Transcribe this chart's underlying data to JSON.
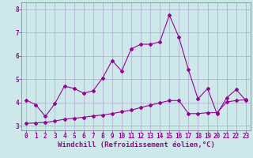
{
  "title": "",
  "xlabel": "Windchill (Refroidissement éolien,°C)",
  "ylabel": "",
  "bg_color": "#cce8e8",
  "grid_color": "#aaaacc",
  "line_color": "#990099",
  "xlim": [
    -0.5,
    23.5
  ],
  "ylim": [
    2.8,
    8.3
  ],
  "xticks": [
    0,
    1,
    2,
    3,
    4,
    5,
    6,
    7,
    8,
    9,
    10,
    11,
    12,
    13,
    14,
    15,
    16,
    17,
    18,
    19,
    20,
    21,
    22,
    23
  ],
  "yticks": [
    3,
    4,
    5,
    6,
    7,
    8
  ],
  "line1_x": [
    0,
    1,
    2,
    3,
    4,
    5,
    6,
    7,
    8,
    9,
    10,
    11,
    12,
    13,
    14,
    15,
    16,
    17,
    18,
    19,
    20,
    21,
    22,
    23
  ],
  "line1_y": [
    4.1,
    3.9,
    3.4,
    3.95,
    4.7,
    4.6,
    4.4,
    4.5,
    5.05,
    5.8,
    5.35,
    6.3,
    6.5,
    6.5,
    6.6,
    7.75,
    6.8,
    5.4,
    4.15,
    4.6,
    3.5,
    4.2,
    4.55,
    4.1
  ],
  "line2_x": [
    0,
    1,
    2,
    3,
    4,
    5,
    6,
    7,
    8,
    9,
    10,
    11,
    12,
    13,
    14,
    15,
    16,
    17,
    18,
    19,
    20,
    21,
    22,
    23
  ],
  "line2_y": [
    3.1,
    3.12,
    3.14,
    3.2,
    3.28,
    3.32,
    3.36,
    3.42,
    3.46,
    3.52,
    3.6,
    3.67,
    3.78,
    3.88,
    3.98,
    4.08,
    4.08,
    3.52,
    3.52,
    3.56,
    3.56,
    4.02,
    4.08,
    4.12
  ],
  "font_size_label": 6.5,
  "font_size_tick": 5.5,
  "marker": "D",
  "markersize": 2.0,
  "linewidth": 0.8
}
